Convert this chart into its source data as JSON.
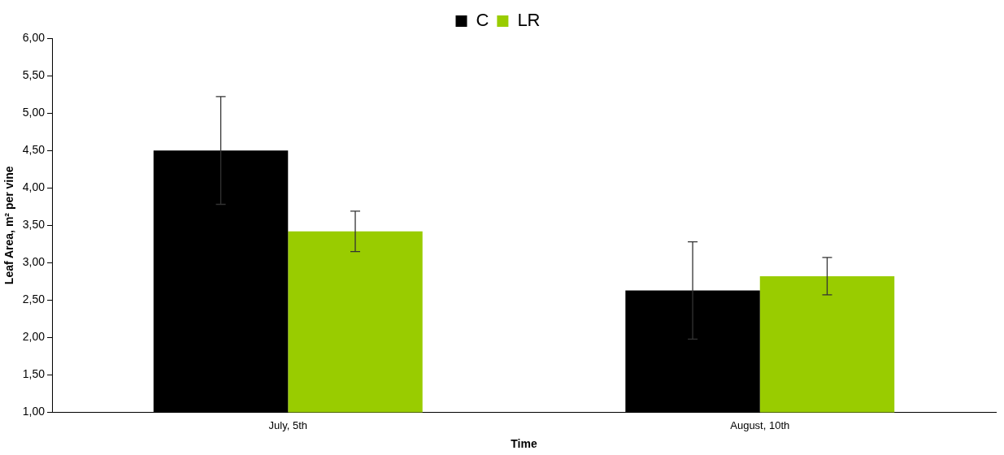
{
  "chart_data": {
    "type": "bar",
    "xlabel": "Time",
    "ylabel": "Leaf Area, m² per vine",
    "categories": [
      "July, 5th",
      "August, 10th"
    ],
    "series": [
      {
        "name": "C",
        "color": "#000000",
        "values": [
          4.5,
          2.63
        ],
        "errors": [
          0.72,
          0.65
        ]
      },
      {
        "name": "LR",
        "color": "#99cc00",
        "values": [
          3.42,
          2.82
        ],
        "errors": [
          0.27,
          0.25
        ]
      }
    ],
    "ylim": [
      1,
      6
    ],
    "yticks": [
      {
        "value": 1,
        "label": "1,00"
      },
      {
        "value": 1.5,
        "label": "1,50"
      },
      {
        "value": 2,
        "label": "2,00"
      },
      {
        "value": 2.5,
        "label": "2,50"
      },
      {
        "value": 3,
        "label": "3,00"
      },
      {
        "value": 3.5,
        "label": "3,50"
      },
      {
        "value": 4,
        "label": "4,00"
      },
      {
        "value": 4.5,
        "label": "4,50"
      },
      {
        "value": 5,
        "label": "5,00"
      },
      {
        "value": 5.5,
        "label": "5,50"
      },
      {
        "value": 6,
        "label": "6,00"
      }
    ],
    "grid": false,
    "legend": "top"
  }
}
